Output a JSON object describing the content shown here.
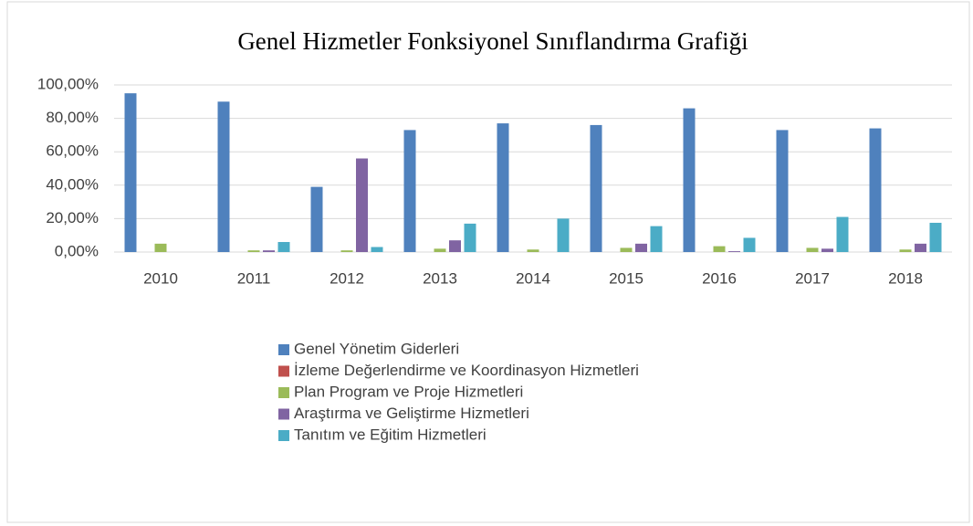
{
  "chart_data": {
    "type": "bar",
    "title": "Genel Hizmetler Fonksiyonel Sınıflandırma Grafiği",
    "categories": [
      "2010",
      "2011",
      "2012",
      "2013",
      "2014",
      "2015",
      "2016",
      "2017",
      "2018"
    ],
    "series": [
      {
        "name": "Genel Yönetim Giderleri",
        "color": "#4f81bd",
        "values": [
          95,
          90,
          39,
          73,
          77,
          76,
          86,
          73,
          74
        ]
      },
      {
        "name": "İzleme Değerlendirme ve  Koordinasyon Hizmetleri",
        "color": "#c0504d",
        "values": [
          0,
          0,
          0,
          0,
          0,
          0,
          0,
          0,
          0
        ]
      },
      {
        "name": "Plan Program ve Proje Hizmetleri",
        "color": "#9bbb59",
        "values": [
          5,
          1,
          1,
          2,
          1.5,
          2.5,
          3.5,
          2.5,
          1.5
        ]
      },
      {
        "name": "Araştırma ve Geliştirme Hizmetleri",
        "color": "#8064a2",
        "values": [
          0,
          1,
          56,
          7,
          0,
          5,
          0.5,
          2,
          5
        ]
      },
      {
        "name": "Tanıtım ve Eğitim Hizmetleri",
        "color": "#4bacc6",
        "values": [
          0,
          6,
          3,
          17,
          20,
          15.5,
          8.5,
          21,
          17.5
        ]
      }
    ],
    "ylim": [
      0,
      100
    ],
    "yticks": [
      {
        "value": 0,
        "label": "0,00%"
      },
      {
        "value": 20,
        "label": "20,00%"
      },
      {
        "value": 40,
        "label": "40,00%"
      },
      {
        "value": 60,
        "label": "60,00%"
      },
      {
        "value": 80,
        "label": "80,00%"
      },
      {
        "value": 100,
        "label": "100,00%"
      }
    ],
    "grid": true
  }
}
